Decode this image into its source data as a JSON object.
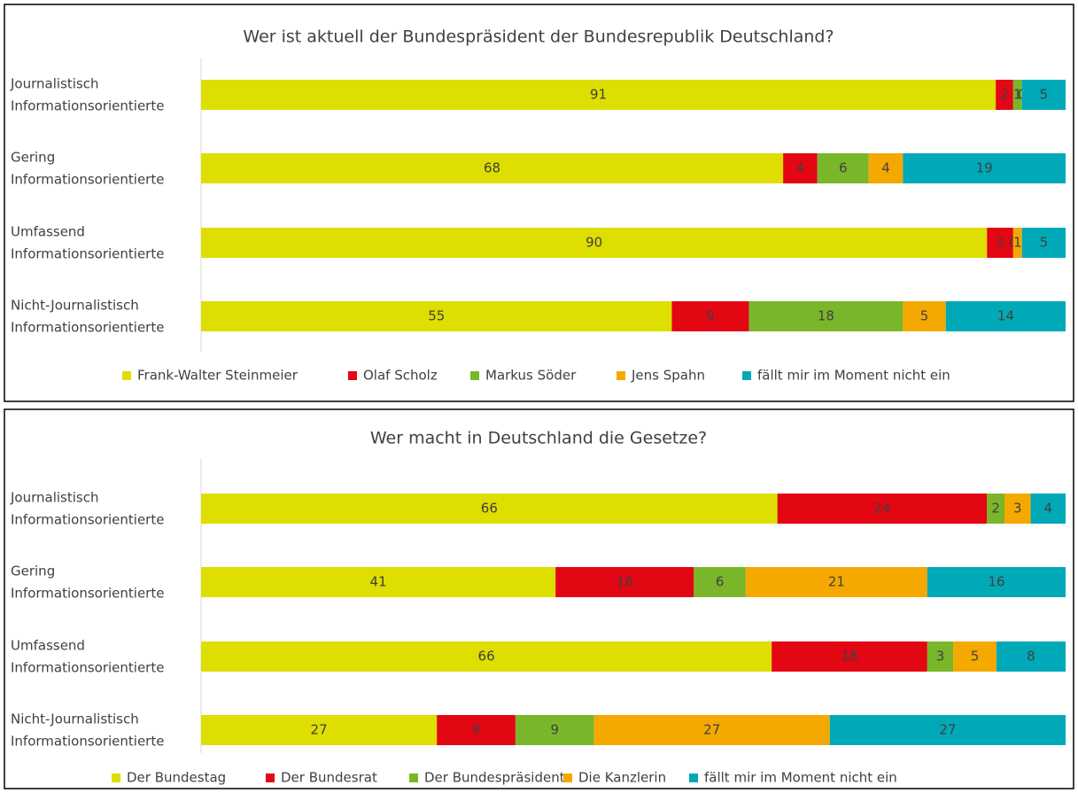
{
  "chart_data": [
    {
      "type": "bar",
      "stacked": "percent",
      "orientation": "horizontal",
      "title": "Wer ist aktuell der Bundespräsident der Bundesrepublik Deutschland?",
      "categories": [
        "Journalistisch Informationsorientierte",
        "Gering Informationsorientierte",
        "Umfassend Informationsorientierte",
        "Nicht-Journalistisch Informationsorientierte"
      ],
      "series": [
        {
          "name": "Frank-Walter Steinmeier",
          "color": "#dede00",
          "values": [
            91,
            68,
            90,
            55
          ]
        },
        {
          "name": "Olaf Scholz",
          "color": "#e30613",
          "values": [
            2,
            4,
            3,
            9
          ]
        },
        {
          "name": "Markus Söder",
          "color": "#7ab62a",
          "values": [
            1,
            6,
            0,
            18
          ]
        },
        {
          "name": "Jens Spahn",
          "color": "#f5a800",
          "values": [
            0,
            4,
            1,
            5
          ]
        },
        {
          "name": "fällt mir im Moment nicht ein",
          "color": "#00a9b8",
          "values": [
            5,
            19,
            5,
            14
          ]
        }
      ],
      "legend": "bottom"
    },
    {
      "type": "bar",
      "stacked": "percent",
      "orientation": "horizontal",
      "title": "Wer macht in Deutschland die Gesetze?",
      "categories": [
        "Journalistisch Informationsorientierte",
        "Gering Informationsorientierte",
        "Umfassend Informationsorientierte",
        "Nicht-Journalistisch Informationsorientierte"
      ],
      "series": [
        {
          "name": "Der Bundestag",
          "color": "#dede00",
          "values": [
            66,
            41,
            66,
            27
          ]
        },
        {
          "name": "Der Bundesrat",
          "color": "#e30613",
          "values": [
            24,
            16,
            18,
            9
          ]
        },
        {
          "name": "Der Bundespräsident",
          "color": "#7ab62a",
          "values": [
            2,
            6,
            3,
            9
          ]
        },
        {
          "name": "Die Kanzlerin",
          "color": "#f5a800",
          "values": [
            3,
            21,
            5,
            27
          ]
        },
        {
          "name": "fällt mir im Moment nicht ein",
          "color": "#00a9b8",
          "values": [
            4,
            16,
            8,
            27
          ]
        }
      ],
      "legend": "bottom"
    }
  ]
}
